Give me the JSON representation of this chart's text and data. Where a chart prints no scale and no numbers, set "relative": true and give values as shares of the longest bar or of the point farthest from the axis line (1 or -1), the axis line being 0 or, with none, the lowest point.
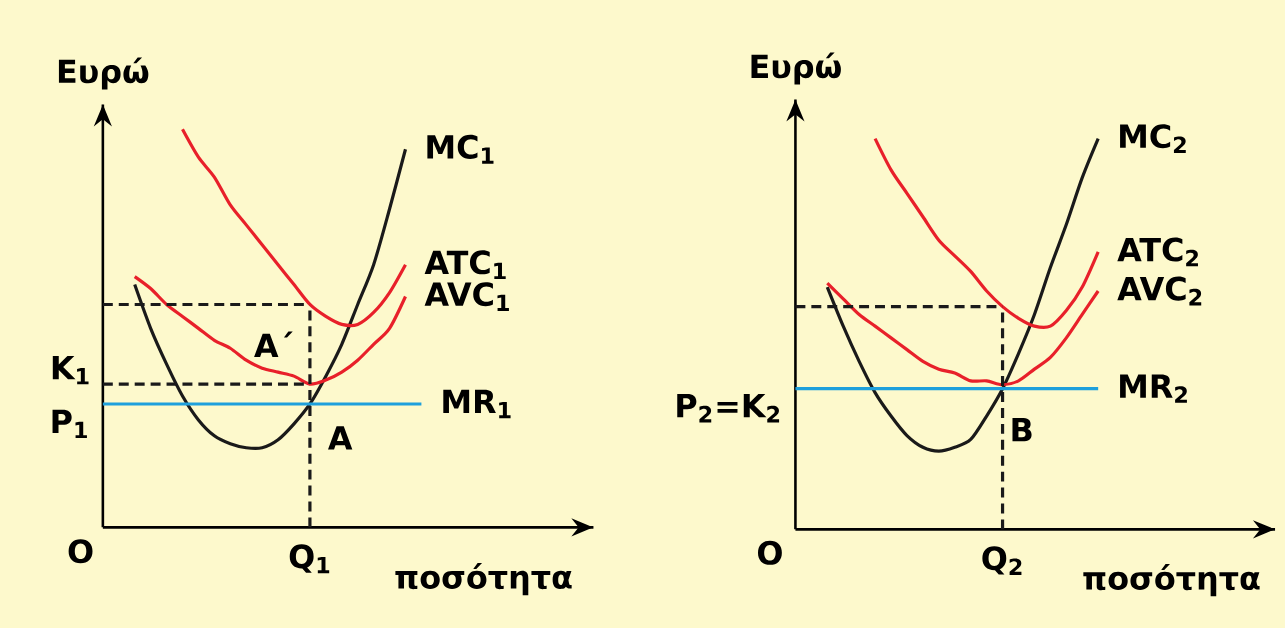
{
  "chart_data": [
    {
      "type": "line",
      "relative": true,
      "xlabel": "ποσότητα",
      "ylabel": "Ευρώ",
      "legend": false,
      "marker": "none",
      "line_style": "solid",
      "categories": [
        null,
        null,
        null,
        null,
        null,
        null,
        null,
        null,
        null,
        null,
        null,
        null,
        null,
        null,
        null,
        null,
        null,
        null,
        null,
        null,
        null
      ],
      "series": [
        {
          "name": "MC$_{1}$",
          "color": "#1a1a1a",
          "values": [
            null,
            null,
            0.61,
            0.5,
            0.41,
            0.33,
            0.27,
            0.23,
            0.21,
            0.2,
            0.2,
            0.22,
            0.26,
            0.31,
            0.38,
            0.46,
            0.56,
            0.66,
            0.8,
            0.95,
            null
          ]
        },
        {
          "name": "ATC$_{1}$",
          "color": "#e8202a",
          "values": [
            null,
            null,
            null,
            null,
            null,
            1.0,
            0.93,
            0.88,
            0.81,
            0.76,
            0.71,
            0.66,
            0.61,
            0.56,
            0.53,
            0.51,
            0.51,
            0.54,
            0.59,
            0.66,
            null
          ]
        },
        {
          "name": "AVC$_{1}$",
          "color": "#e8202a",
          "values": [
            null,
            null,
            0.63,
            0.6,
            0.56,
            0.53,
            0.5,
            0.47,
            0.45,
            0.42,
            0.4,
            0.39,
            0.38,
            0.36,
            0.37,
            0.39,
            0.42,
            0.46,
            0.5,
            0.58,
            null
          ]
        },
        {
          "name": "MR$_{1}$",
          "color": "#1ea0dc",
          "values": [
            0.31,
            0.31,
            0.31,
            0.31,
            0.31,
            0.31,
            0.31,
            0.31,
            0.31,
            0.31,
            0.31,
            0.31,
            0.31,
            0.31,
            0.31,
            0.31,
            0.31,
            0.31,
            0.31,
            0.31,
            0.31
          ]
        }
      ],
      "ref_lines": [
        {
          "axis": "y",
          "value": 0.56,
          "label": null,
          "line_style": "dashed",
          "color": "#1a1a1a"
        },
        {
          "axis": "y",
          "value": 0.36,
          "label": "K$_{1}$",
          "line_style": "dashed",
          "color": "#1a1a1a"
        }
      ],
      "annotations": [
        "P$_{1}$",
        "A΄",
        "A",
        "O",
        "Q$_{1}$"
      ]
    },
    {
      "type": "line",
      "relative": true,
      "xlabel": "ποσότητα",
      "ylabel": "Ευρώ",
      "legend": false,
      "marker": "none",
      "line_style": "solid",
      "categories": [
        null,
        null,
        null,
        null,
        null,
        null,
        null,
        null,
        null,
        null,
        null,
        null,
        null,
        null,
        null,
        null,
        null,
        null,
        null,
        null
      ],
      "series": [
        {
          "name": "MC$_{2}$",
          "color": "#1a1a1a",
          "values": [
            null,
            null,
            0.62,
            0.52,
            0.43,
            0.35,
            0.29,
            0.24,
            0.21,
            0.2,
            0.21,
            0.23,
            0.29,
            0.36,
            0.45,
            0.55,
            0.67,
            0.78,
            0.9,
            1.0
          ]
        },
        {
          "name": "ATC$_{2}$",
          "color": "#e8202a",
          "values": [
            null,
            null,
            null,
            null,
            null,
            1.0,
            0.92,
            0.86,
            0.8,
            0.74,
            0.7,
            0.66,
            0.61,
            0.57,
            0.54,
            0.52,
            0.52,
            0.56,
            0.62,
            0.71
          ]
        },
        {
          "name": "AVC$_{2}$",
          "color": "#e8202a",
          "values": [
            null,
            null,
            0.63,
            0.59,
            0.55,
            0.52,
            0.49,
            0.46,
            0.43,
            0.41,
            0.4,
            0.38,
            0.38,
            0.37,
            0.38,
            0.41,
            0.44,
            0.49,
            0.55,
            0.61
          ]
        },
        {
          "name": "MR$_{2}$",
          "color": "#1ea0dc",
          "values": [
            0.36,
            0.36,
            0.36,
            0.36,
            0.36,
            0.36,
            0.36,
            0.36,
            0.36,
            0.36,
            0.36,
            0.36,
            0.36,
            0.36,
            0.36,
            0.36,
            0.36,
            0.36,
            0.36,
            0.36
          ]
        }
      ],
      "ref_lines": [
        {
          "axis": "y",
          "value": 0.57,
          "label": null,
          "line_style": "dashed",
          "color": "#1a1a1a"
        }
      ],
      "annotations": [
        "P$_{2}$=K$_{2}$",
        "B",
        "O",
        "Q$_{2}$"
      ]
    }
  ]
}
